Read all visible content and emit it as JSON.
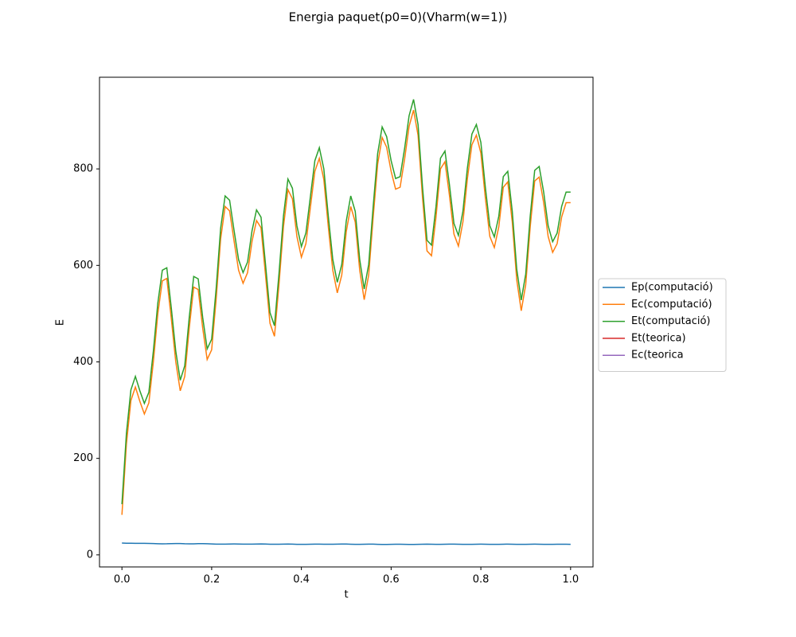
{
  "chart_data": {
    "type": "line",
    "title": "Energia paquet(p0=0)(Vharm(w=1))",
    "x_label": "t",
    "y_label": "E",
    "x": [
      0,
      0.01,
      0.02,
      0.03,
      0.04,
      0.05,
      0.06,
      0.07,
      0.08,
      0.09,
      0.1,
      0.11,
      0.12,
      0.13,
      0.14,
      0.15,
      0.16,
      0.17,
      0.18,
      0.19,
      0.2,
      0.21,
      0.22,
      0.23,
      0.24,
      0.25,
      0.26,
      0.27,
      0.28,
      0.29,
      0.3,
      0.31,
      0.32,
      0.33,
      0.34,
      0.35,
      0.36,
      0.37,
      0.38,
      0.39,
      0.4,
      0.41,
      0.42,
      0.43,
      0.44,
      0.45,
      0.46,
      0.47,
      0.48,
      0.49,
      0.5,
      0.51,
      0.52,
      0.53,
      0.54,
      0.55,
      0.56,
      0.57,
      0.58,
      0.59,
      0.6,
      0.61,
      0.62,
      0.63,
      0.64,
      0.65,
      0.66,
      0.67,
      0.68,
      0.69,
      0.7,
      0.71,
      0.72,
      0.73,
      0.74,
      0.75,
      0.76,
      0.77,
      0.78,
      0.79,
      0.8,
      0.81,
      0.82,
      0.83,
      0.84,
      0.85,
      0.86,
      0.87,
      0.88,
      0.89,
      0.9,
      0.91,
      0.92,
      0.93,
      0.94,
      0.95,
      0.96,
      0.97,
      0.98,
      0.99,
      1
    ],
    "series": [
      {
        "name": "Ep(computació)",
        "color": "#1f77b4",
        "values": [
          24.5,
          24.2,
          24,
          23.8,
          23.8,
          23.9,
          23.7,
          23.4,
          23.1,
          22.9,
          23,
          23.3,
          23.5,
          23.4,
          23,
          22.8,
          22.9,
          23.2,
          23.3,
          23,
          22.6,
          22.3,
          22.2,
          22.3,
          22.5,
          22.6,
          22.5,
          22.3,
          22.2,
          22.3,
          22.5,
          22.6,
          22.4,
          22.1,
          22,
          22.1,
          22.3,
          22.4,
          22.2,
          21.9,
          21.8,
          21.9,
          22.1,
          22.3,
          22.3,
          22.1,
          22,
          22.1,
          22.3,
          22.5,
          22.4,
          22.1,
          21.9,
          21.9,
          22.1,
          22.3,
          22.2,
          21.9,
          21.7,
          21.7,
          21.9,
          22.1,
          22.1,
          21.9,
          21.7,
          21.7,
          21.9,
          22.1,
          22.2,
          22,
          21.8,
          21.8,
          22,
          22.2,
          22.2,
          22,
          21.8,
          21.8,
          21.9,
          22.1,
          22.2,
          22.1,
          21.9,
          21.8,
          21.9,
          22.1,
          22.2,
          22.1,
          21.9,
          21.8,
          21.9,
          22.1,
          22.2,
          22.1,
          21.9,
          21.8,
          21.9,
          22,
          22.1,
          22,
          21.9
        ]
      },
      {
        "name": "Ec(computació)",
        "color": "#ff7f0e",
        "values": [
          83,
          230,
          320,
          348,
          318,
          292,
          315,
          400,
          500,
          568,
          573,
          490,
          400,
          340,
          370,
          470,
          555,
          550,
          470,
          405,
          425,
          530,
          655,
          722,
          713,
          650,
          590,
          563,
          585,
          650,
          693,
          678,
          580,
          480,
          453,
          560,
          680,
          757,
          738,
          660,
          617,
          645,
          720,
          795,
          822,
          778,
          680,
          590,
          543,
          580,
          670,
          722,
          690,
          590,
          529,
          580,
          700,
          810,
          865,
          845,
          795,
          758,
          762,
          820,
          888,
          922,
          870,
          740,
          630,
          620,
          700,
          800,
          815,
          745,
          665,
          640,
          690,
          780,
          850,
          870,
          833,
          740,
          660,
          637,
          680,
          762,
          773,
          690,
          570,
          506,
          560,
          680,
          775,
          783,
          730,
          660,
          627,
          645,
          700,
          730,
          730
        ]
      },
      {
        "name": "Et(computació)",
        "color": "#2ca02c",
        "values": [
          105,
          252,
          342,
          370,
          340,
          314,
          337,
          422,
          522,
          590,
          595,
          512,
          422,
          362,
          392,
          492,
          577,
          572,
          492,
          427,
          447,
          552,
          677,
          744,
          735,
          672,
          612,
          585,
          607,
          672,
          715,
          700,
          602,
          502,
          475,
          582,
          702,
          779,
          760,
          682,
          639,
          667,
          742,
          817,
          844,
          800,
          702,
          612,
          565,
          602,
          692,
          744,
          712,
          612,
          551,
          602,
          722,
          832,
          887,
          867,
          817,
          780,
          784,
          842,
          910,
          944,
          892,
          762,
          652,
          642,
          722,
          822,
          837,
          767,
          687,
          662,
          712,
          802,
          872,
          892,
          855,
          762,
          682,
          659,
          702,
          784,
          795,
          712,
          592,
          528,
          582,
          702,
          797,
          805,
          752,
          682,
          649,
          667,
          722,
          752,
          752
        ]
      },
      {
        "name": "Et(teorica)",
        "color": "#d62728",
        "values": [
          null,
          null,
          null,
          null,
          null,
          null,
          null,
          null,
          null,
          null,
          null,
          null,
          null,
          null,
          null,
          null,
          null,
          null,
          null,
          null,
          null,
          null,
          null,
          null,
          null,
          null,
          null,
          null,
          null,
          null,
          null,
          null,
          null,
          null,
          null,
          null,
          null,
          null,
          null,
          null,
          null,
          null,
          null,
          null,
          null,
          null,
          null,
          null,
          null,
          null,
          null,
          null,
          null,
          null,
          null,
          null,
          null,
          null,
          null,
          null,
          null,
          null,
          null,
          null,
          null,
          null,
          null,
          null,
          null,
          null,
          null,
          null,
          null,
          null,
          null,
          null,
          null,
          null,
          null,
          null,
          null,
          null,
          null,
          null,
          null,
          null,
          null,
          null,
          null,
          null,
          null,
          null,
          null,
          null,
          null,
          null,
          null,
          null,
          null,
          null,
          null
        ]
      },
      {
        "name": "Ec(teorica",
        "color": "#9467bd",
        "values": [
          null,
          null,
          null,
          null,
          null,
          null,
          null,
          null,
          null,
          null,
          null,
          null,
          null,
          null,
          null,
          null,
          null,
          null,
          null,
          null,
          null,
          null,
          null,
          null,
          null,
          null,
          null,
          null,
          null,
          null,
          null,
          null,
          null,
          null,
          null,
          null,
          null,
          null,
          null,
          null,
          null,
          null,
          null,
          null,
          null,
          null,
          null,
          null,
          null,
          null,
          null,
          null,
          null,
          null,
          null,
          null,
          null,
          null,
          null,
          null,
          null,
          null,
          null,
          null,
          null,
          null,
          null,
          null,
          null,
          null,
          null,
          null,
          null,
          null,
          null,
          null,
          null,
          null,
          null,
          null,
          null,
          null,
          null,
          null,
          null,
          null,
          null,
          null,
          null,
          null,
          null,
          null,
          null,
          null,
          null,
          null,
          null,
          null,
          null,
          null,
          null
        ]
      }
    ],
    "xlim": [
      -0.05,
      1.05
    ],
    "xticks": [
      {
        "value": 0,
        "label": "0.0"
      },
      0.2,
      0.4,
      0.6,
      0.8,
      {
        "value": 1,
        "label": "1.0"
      }
    ],
    "ylim": [
      -25,
      990
    ],
    "yticks": [
      0,
      200,
      400,
      600,
      800
    ],
    "legend": "center right outside",
    "grid": false
  }
}
